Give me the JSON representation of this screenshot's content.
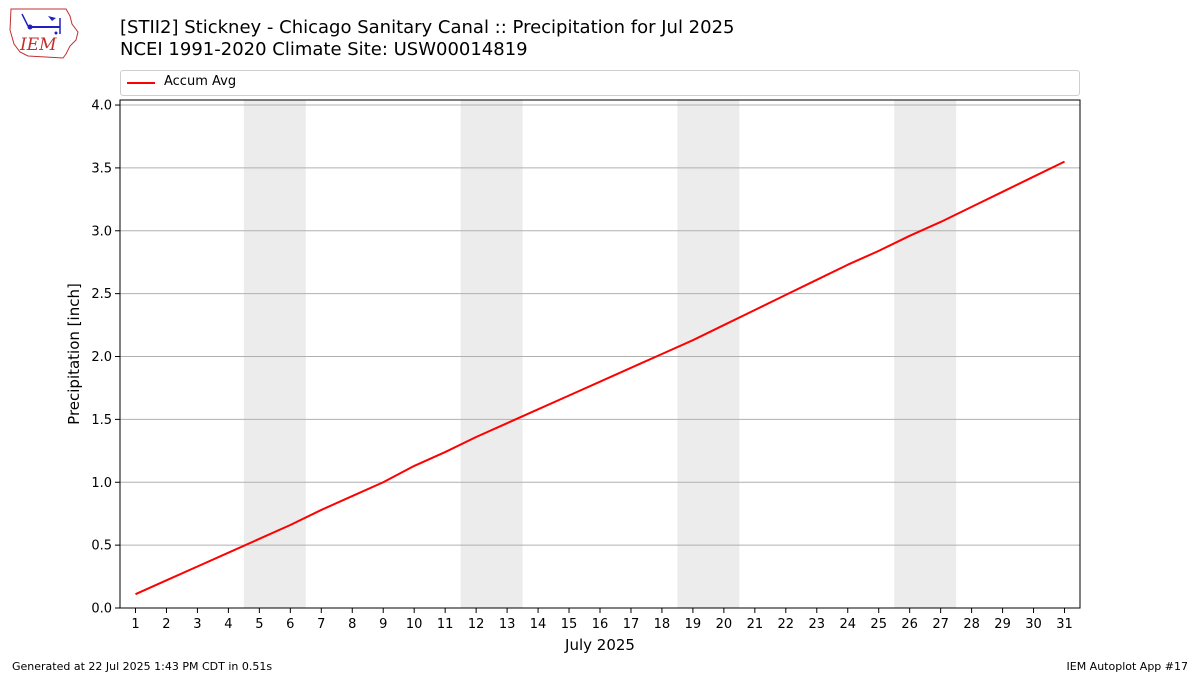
{
  "header": {
    "title_line1": "[STII2] Stickney - Chicago Sanitary Canal :: Precipitation for Jul 2025",
    "title_line2": "NCEI 1991-2020 Climate Site: USW00014819",
    "logo_text": "IEM"
  },
  "footer": {
    "generated": "Generated at 22 Jul 2025 1:43 PM CDT in 0.51s",
    "app": "IEM Autoplot App #17"
  },
  "colors": {
    "series": "#ff0000",
    "weekend_band": "#ececec",
    "grid": "#b0b0b0"
  },
  "chart_data": {
    "type": "line",
    "xlabel": "July 2025",
    "ylabel": "Precipitation [inch]",
    "ylim": [
      0,
      4.0
    ],
    "yticks": [
      "0.0",
      "0.5",
      "1.0",
      "1.5",
      "2.0",
      "2.5",
      "3.0",
      "3.5",
      "4.0"
    ],
    "x": [
      1,
      2,
      3,
      4,
      5,
      6,
      7,
      8,
      9,
      10,
      11,
      12,
      13,
      14,
      15,
      16,
      17,
      18,
      19,
      20,
      21,
      22,
      23,
      24,
      25,
      26,
      27,
      28,
      29,
      30,
      31
    ],
    "grid": "horizontal",
    "legend_position": "top",
    "shaded_weekends": [
      [
        5,
        6
      ],
      [
        12,
        13
      ],
      [
        19,
        20
      ],
      [
        26,
        27
      ]
    ],
    "series": [
      {
        "name": "Accum Avg",
        "color": "#ff0000",
        "values": [
          0.11,
          0.22,
          0.33,
          0.44,
          0.55,
          0.66,
          0.78,
          0.89,
          1.0,
          1.13,
          1.24,
          1.36,
          1.47,
          1.58,
          1.69,
          1.8,
          1.91,
          2.02,
          2.13,
          2.25,
          2.37,
          2.49,
          2.61,
          2.73,
          2.84,
          2.96,
          3.07,
          3.19,
          3.31,
          3.43,
          3.55
        ]
      }
    ]
  }
}
